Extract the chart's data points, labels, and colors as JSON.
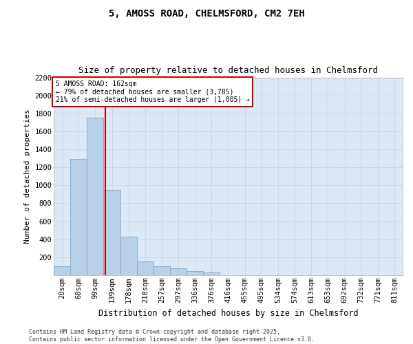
{
  "title1": "5, AMOSS ROAD, CHELMSFORD, CM2 7EH",
  "title2": "Size of property relative to detached houses in Chelmsford",
  "xlabel": "Distribution of detached houses by size in Chelmsford",
  "ylabel": "Number of detached properties",
  "categories": [
    "20sqm",
    "60sqm",
    "99sqm",
    "139sqm",
    "178sqm",
    "218sqm",
    "257sqm",
    "297sqm",
    "336sqm",
    "376sqm",
    "416sqm",
    "455sqm",
    "495sqm",
    "534sqm",
    "574sqm",
    "613sqm",
    "653sqm",
    "692sqm",
    "732sqm",
    "771sqm",
    "811sqm"
  ],
  "values": [
    100,
    1290,
    1750,
    950,
    425,
    150,
    100,
    75,
    45,
    30,
    0,
    0,
    0,
    0,
    0,
    0,
    0,
    0,
    0,
    0,
    0
  ],
  "bar_color": "#b8d0e8",
  "bar_edge_color": "#7aaac8",
  "grid_color": "#c8d4e4",
  "background_color": "#dce8f4",
  "vline_x": 2.59,
  "vline_color": "#cc0000",
  "annotation_text": "5 AMOSS ROAD: 162sqm\n← 79% of detached houses are smaller (3,785)\n21% of semi-detached houses are larger (1,005) →",
  "annotation_box_facecolor": "#ffffff",
  "annotation_box_edge": "#cc0000",
  "ylim": [
    0,
    2200
  ],
  "yticks": [
    0,
    200,
    400,
    600,
    800,
    1000,
    1200,
    1400,
    1600,
    1800,
    2000,
    2200
  ],
  "footer": "Contains HM Land Registry data © Crown copyright and database right 2025.\nContains public sector information licensed under the Open Government Licence v3.0.",
  "title1_fontsize": 10,
  "title2_fontsize": 9,
  "xlabel_fontsize": 8.5,
  "ylabel_fontsize": 8,
  "tick_fontsize": 7.5,
  "annotation_fontsize": 7,
  "footer_fontsize": 6
}
